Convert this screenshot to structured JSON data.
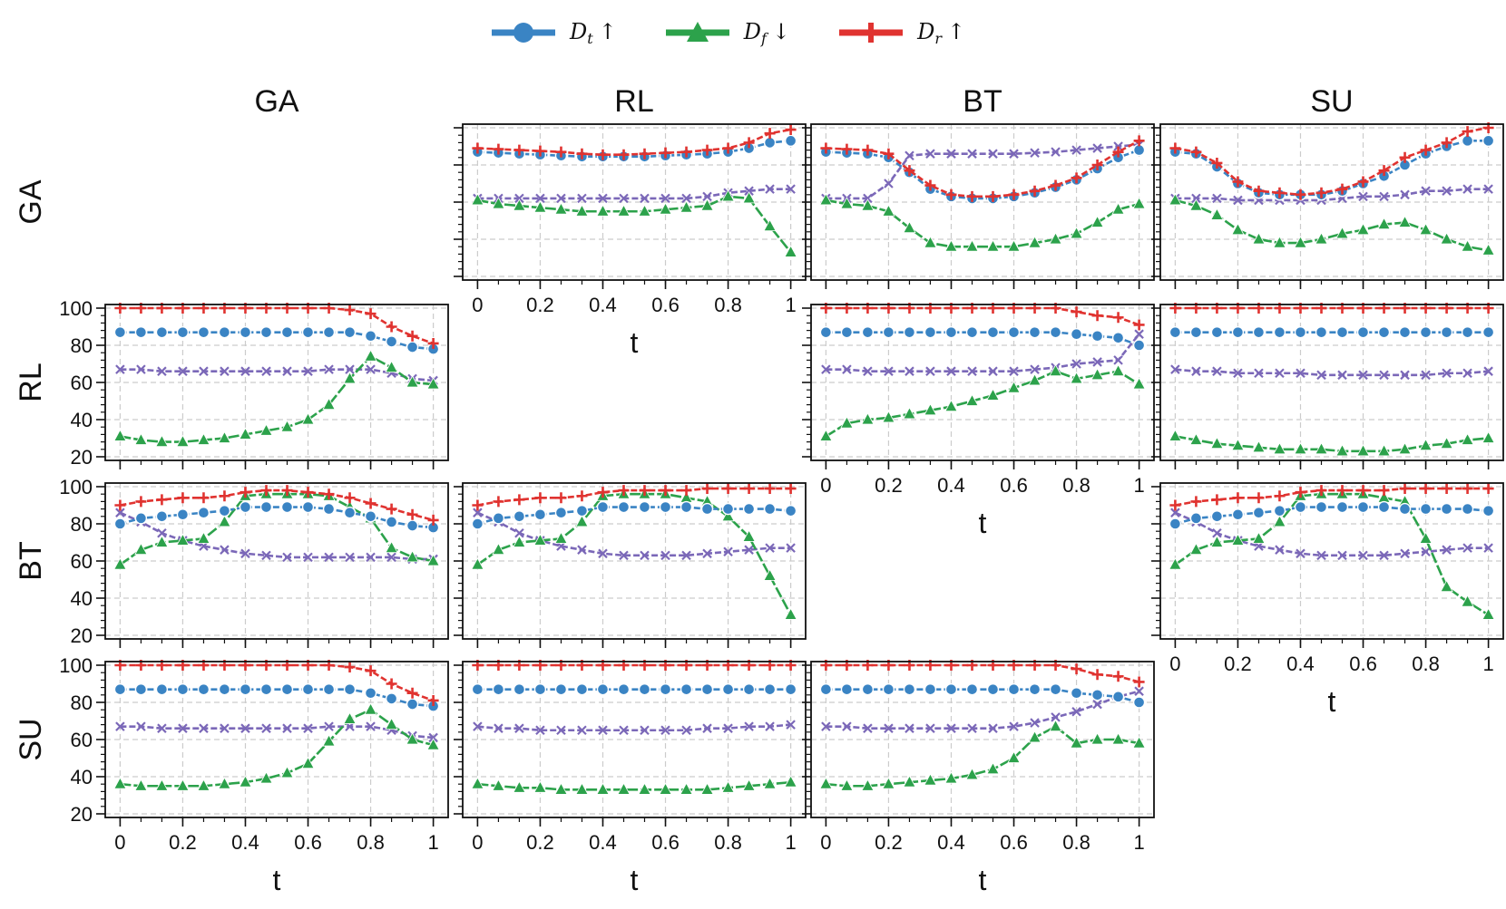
{
  "legend": [
    {
      "symbol": "D",
      "sub": "t",
      "arrow": "↑",
      "color": "#3a84c4",
      "marker": "circle"
    },
    {
      "symbol": "D",
      "sub": "f",
      "arrow": "↓",
      "color": "#2ca24b",
      "marker": "triangle"
    },
    {
      "symbol": "D",
      "sub": "r",
      "arrow": "↑",
      "color": "#e03330",
      "marker": "plus"
    }
  ],
  "chart_data": {
    "type": "line",
    "col_titles": [
      "GA",
      "RL",
      "BT",
      "SU"
    ],
    "row_titles": [
      "GA",
      "RL",
      "BT",
      "SU"
    ],
    "xlabel": "t",
    "x": [
      0,
      0.0667,
      0.1333,
      0.2,
      0.2667,
      0.3333,
      0.4,
      0.4667,
      0.5333,
      0.6,
      0.6667,
      0.7333,
      0.8,
      0.8667,
      0.9333,
      1
    ],
    "xticks": [
      "0",
      "0.2",
      "0.4",
      "0.6",
      "0.8",
      "1"
    ],
    "ylim": [
      20,
      100
    ],
    "yticks": [
      20,
      40,
      60,
      80,
      100
    ],
    "grid": true,
    "series_styles": {
      "Dt": {
        "color": "#3a84c4",
        "marker": "circle"
      },
      "Df": {
        "color": "#2ca24b",
        "marker": "triangle"
      },
      "Dr": {
        "color": "#e03330",
        "marker": "plus"
      },
      "X": {
        "color": "#7b68b8",
        "marker": "x"
      }
    },
    "panels": [
      {
        "row": 0,
        "col": 1,
        "Dt": [
          87,
          86.5,
          86,
          85.5,
          85,
          84.5,
          84.5,
          84.5,
          84.5,
          85,
          85.5,
          86,
          87,
          89,
          92,
          93
        ],
        "Dr": [
          89,
          88.5,
          88,
          87.5,
          87,
          86,
          85.5,
          85.5,
          86,
          86.5,
          87,
          88,
          89,
          92,
          97,
          99
        ],
        "Df": [
          61,
          59,
          58,
          57,
          56,
          55,
          55,
          55,
          55,
          56,
          57,
          58,
          63,
          62,
          47,
          33
        ],
        "X": [
          62,
          62,
          62,
          62,
          62,
          62,
          62,
          62,
          62,
          62,
          62,
          63,
          65,
          66,
          67,
          67
        ]
      },
      {
        "row": 0,
        "col": 2,
        "Dt": [
          87,
          86.5,
          86,
          84,
          76,
          67,
          63,
          62,
          62,
          63,
          65,
          68,
          72,
          78,
          84,
          88
        ],
        "Dr": [
          89,
          88.5,
          88,
          86,
          77,
          69,
          64,
          63,
          63,
          64,
          66,
          69,
          73,
          80,
          87,
          93
        ],
        "Df": [
          61,
          59,
          58,
          55,
          46,
          38,
          36,
          36,
          36,
          36,
          38,
          40,
          43,
          49,
          56,
          59
        ],
        "X": [
          62,
          62,
          62,
          70,
          85,
          86,
          86,
          86,
          86,
          86,
          86.5,
          87,
          88,
          89,
          90,
          91
        ]
      },
      {
        "row": 0,
        "col": 3,
        "Dt": [
          87,
          86,
          79,
          70,
          65,
          64,
          64,
          64,
          66,
          70,
          74,
          80,
          86,
          90,
          93,
          93
        ],
        "Dr": [
          89,
          87,
          81,
          71,
          66,
          65,
          64,
          65,
          67,
          71,
          77,
          84,
          88,
          92,
          98,
          100
        ],
        "Df": [
          61,
          58,
          53,
          45,
          40,
          38,
          38,
          40,
          43,
          45,
          48,
          49,
          45,
          40,
          36,
          34
        ],
        "X": [
          62,
          62,
          62,
          61,
          61,
          61,
          61,
          61,
          62,
          63,
          63,
          64,
          66,
          66,
          67,
          67
        ]
      },
      {
        "row": 1,
        "col": 0,
        "Dt": [
          87,
          87,
          87,
          87,
          87,
          87,
          87,
          87,
          87,
          87,
          87,
          87,
          85,
          82,
          79,
          78
        ],
        "Dr": [
          100,
          100,
          100,
          100,
          100,
          100,
          100,
          100,
          100,
          100,
          100,
          99,
          97,
          90,
          85,
          81
        ],
        "Df": [
          31,
          29,
          28,
          28,
          29,
          30,
          32,
          34,
          36,
          40,
          48,
          62,
          74,
          68,
          60,
          59
        ],
        "X": [
          67,
          67,
          66,
          66,
          66,
          66,
          66,
          66,
          66,
          66,
          67,
          67,
          67,
          65,
          62,
          61
        ]
      },
      {
        "row": 1,
        "col": 2,
        "Dt": [
          87,
          87,
          87,
          87,
          87,
          87,
          87,
          87,
          87,
          87,
          87,
          87,
          86,
          85,
          84,
          80
        ],
        "Dr": [
          100,
          100,
          100,
          100,
          100,
          100,
          100,
          100,
          100,
          100,
          100,
          100,
          98,
          96,
          95,
          91
        ],
        "Df": [
          31,
          38,
          40,
          41,
          43,
          45,
          47,
          50,
          53,
          57,
          61,
          66,
          62,
          64,
          66,
          59
        ],
        "X": [
          67,
          67,
          66,
          66,
          66,
          66,
          66,
          66,
          66,
          66,
          67,
          68,
          70,
          71,
          72,
          86
        ]
      },
      {
        "row": 1,
        "col": 3,
        "Dt": [
          87,
          87,
          87,
          87,
          87,
          87,
          87,
          87,
          87,
          87,
          87,
          87,
          87,
          87,
          87,
          87
        ],
        "Dr": [
          100,
          100,
          100,
          100,
          100,
          100,
          100,
          100,
          100,
          100,
          100,
          100,
          100,
          100,
          100,
          100
        ],
        "Df": [
          31,
          29,
          27,
          26,
          25,
          24,
          24,
          24,
          23,
          23,
          23,
          24,
          26,
          27,
          29,
          30
        ],
        "X": [
          67,
          66,
          66,
          65,
          65,
          65,
          65,
          64,
          64,
          64,
          64,
          64,
          64,
          65,
          65,
          66
        ]
      },
      {
        "row": 2,
        "col": 0,
        "Dt": [
          80,
          83,
          84,
          85,
          86,
          87,
          89,
          89,
          89,
          89,
          88,
          86,
          84,
          81,
          79,
          78
        ],
        "Dr": [
          90,
          92,
          93,
          94,
          94,
          95,
          97,
          98,
          98,
          97,
          96,
          94,
          91,
          88,
          85,
          82
        ],
        "Df": [
          58,
          66,
          70,
          71,
          72,
          81,
          95,
          96,
          96,
          96,
          95,
          89,
          83,
          67,
          62,
          60
        ],
        "X": [
          86,
          81,
          75,
          71,
          68,
          66,
          64,
          63,
          62,
          62,
          62,
          62,
          62,
          62,
          61,
          61
        ]
      },
      {
        "row": 2,
        "col": 1,
        "Dt": [
          80,
          83,
          84,
          85,
          86,
          87,
          89,
          89,
          89,
          89,
          89,
          88,
          88,
          88,
          88,
          87
        ],
        "Dr": [
          90,
          92,
          93,
          94,
          94,
          95,
          97,
          98,
          98,
          98,
          98,
          99,
          99,
          99,
          99,
          99
        ],
        "Df": [
          58,
          66,
          70,
          71,
          72,
          81,
          95,
          96,
          96,
          96,
          94,
          92,
          84,
          73,
          52,
          31
        ],
        "X": [
          86,
          81,
          75,
          71,
          68,
          66,
          64,
          63,
          63,
          63,
          63,
          64,
          65,
          66,
          67,
          67
        ]
      },
      {
        "row": 2,
        "col": 3,
        "Dt": [
          80,
          83,
          84,
          85,
          86,
          87,
          89,
          89,
          89,
          89,
          89,
          88,
          88,
          88,
          88,
          87
        ],
        "Dr": [
          90,
          92,
          93,
          94,
          94,
          95,
          97,
          98,
          98,
          98,
          98,
          99,
          99,
          99,
          99,
          99
        ],
        "Df": [
          58,
          66,
          70,
          71,
          72,
          81,
          95,
          96,
          96,
          96,
          94,
          92,
          72,
          46,
          38,
          31
        ],
        "X": [
          86,
          81,
          75,
          71,
          68,
          66,
          64,
          63,
          63,
          63,
          63,
          64,
          65,
          66,
          67,
          67
        ]
      },
      {
        "row": 3,
        "col": 0,
        "Dt": [
          87,
          87,
          87,
          87,
          87,
          87,
          87,
          87,
          87,
          87,
          87,
          87,
          85,
          82,
          79,
          78
        ],
        "Dr": [
          100,
          100,
          100,
          100,
          100,
          100,
          100,
          100,
          100,
          100,
          100,
          99,
          97,
          90,
          85,
          81
        ],
        "Df": [
          36,
          35,
          35,
          35,
          35,
          36,
          37,
          39,
          42,
          47,
          59,
          71,
          76,
          68,
          60,
          57
        ],
        "X": [
          67,
          67,
          66,
          66,
          66,
          66,
          66,
          66,
          66,
          66,
          67,
          67,
          67,
          65,
          62,
          61
        ]
      },
      {
        "row": 3,
        "col": 1,
        "Dt": [
          87,
          87,
          87,
          87,
          87,
          87,
          87,
          87,
          87,
          87,
          87,
          87,
          87,
          87,
          87,
          87
        ],
        "Dr": [
          100,
          100,
          100,
          100,
          100,
          100,
          100,
          100,
          100,
          100,
          100,
          100,
          100,
          100,
          100,
          100
        ],
        "Df": [
          36,
          35,
          34,
          34,
          33,
          33,
          33,
          33,
          33,
          33,
          33,
          33,
          34,
          35,
          36,
          37
        ],
        "X": [
          67,
          66,
          66,
          65,
          65,
          65,
          65,
          65,
          65,
          65,
          65,
          66,
          66,
          67,
          67,
          68
        ]
      },
      {
        "row": 3,
        "col": 2,
        "Dt": [
          87,
          87,
          87,
          87,
          87,
          87,
          87,
          87,
          87,
          87,
          87,
          87,
          85,
          84,
          83,
          80
        ],
        "Dr": [
          100,
          100,
          100,
          100,
          100,
          100,
          100,
          100,
          100,
          100,
          100,
          100,
          98,
          95,
          94,
          91
        ],
        "Df": [
          36,
          35,
          35,
          36,
          37,
          38,
          39,
          41,
          44,
          50,
          61,
          67,
          58,
          60,
          60,
          58
        ],
        "X": [
          67,
          67,
          66,
          66,
          66,
          66,
          66,
          66,
          66,
          67,
          69,
          72,
          75,
          79,
          83,
          86
        ]
      }
    ]
  }
}
